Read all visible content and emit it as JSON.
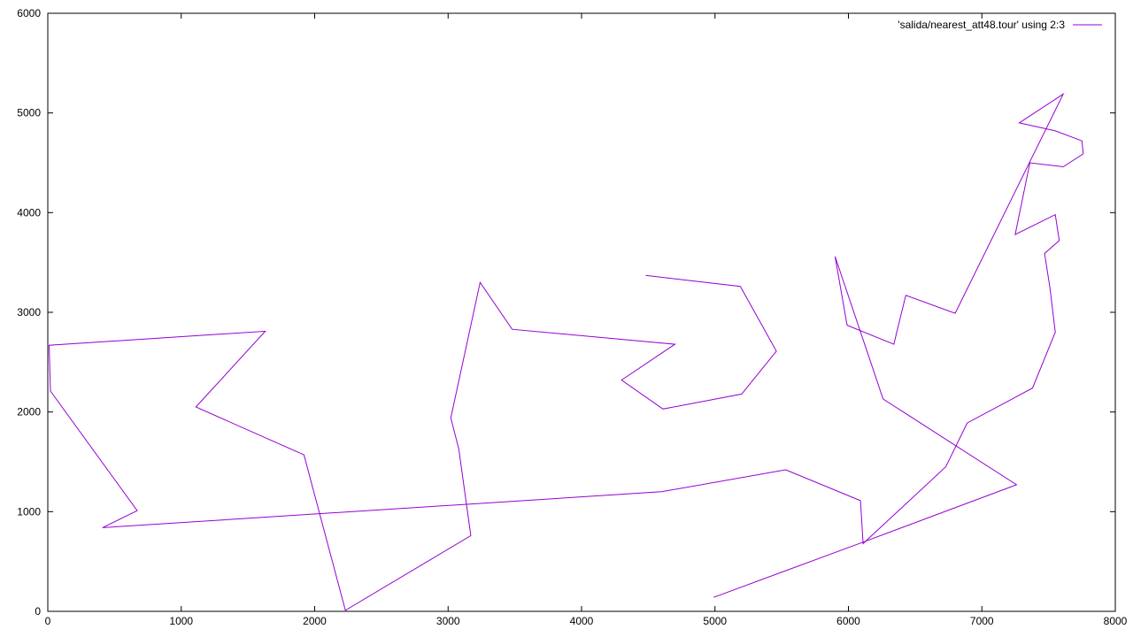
{
  "chart_data": {
    "type": "line",
    "title": "",
    "xlabel": "",
    "ylabel": "",
    "xlim": [
      0,
      8000
    ],
    "ylim": [
      0,
      6000
    ],
    "xticks": [
      0,
      1000,
      2000,
      3000,
      4000,
      5000,
      6000,
      7000,
      8000
    ],
    "yticks": [
      0,
      1000,
      2000,
      3000,
      4000,
      5000,
      6000
    ],
    "grid": false,
    "legend_position": "top-right",
    "series": [
      {
        "name": "'salida/nearest_att48.tour' using 2:3",
        "color": "#9400d3",
        "x": [
          4990,
          6100,
          7260,
          6260,
          5900,
          5990,
          6340,
          6430,
          6800,
          7610,
          7280,
          7550,
          7750,
          7760,
          7610,
          7360,
          7250,
          7550,
          7580,
          7470,
          7510,
          7550,
          7380,
          6890,
          6730,
          6110,
          6090,
          5530,
          4600,
          410,
          670,
          20,
          10,
          1630,
          1110,
          1920,
          2230,
          3170,
          3080,
          3020,
          3240,
          3480,
          4700,
          4300,
          4610,
          5200,
          5460,
          5190,
          4480
        ],
        "y": [
          140,
          690,
          1270,
          2130,
          3560,
          2870,
          2680,
          3170,
          2990,
          5190,
          4900,
          4820,
          4720,
          4590,
          4460,
          4500,
          3780,
          3980,
          3720,
          3590,
          3250,
          2800,
          2240,
          1890,
          1450,
          680,
          1110,
          1420,
          1200,
          840,
          1010,
          2210,
          2670,
          2810,
          2050,
          1570,
          10,
          760,
          1630,
          1940,
          3300,
          2830,
          2680,
          2320,
          2030,
          2180,
          2610,
          3260,
          3370
        ]
      }
    ]
  }
}
